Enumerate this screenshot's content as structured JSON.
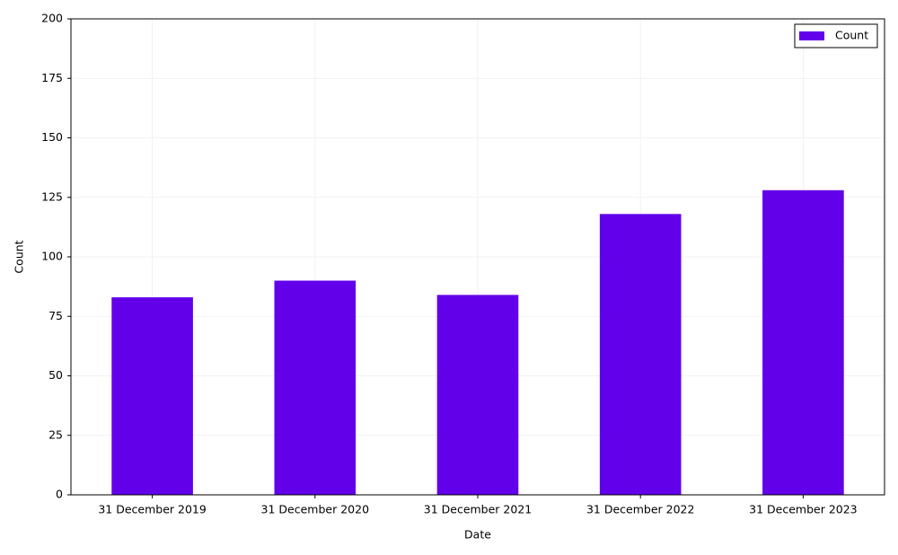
{
  "chart_data": {
    "type": "bar",
    "x_label": "Date",
    "y_label": "Count",
    "categories": [
      "31 December 2019",
      "31 December 2020",
      "31 December 2021",
      "31 December 2022",
      "31 December 2023"
    ],
    "series": [
      {
        "name": "Count",
        "color": "#6200ea",
        "values": [
          83,
          90,
          84,
          118,
          128
        ]
      }
    ],
    "ylim": [
      0,
      200
    ],
    "yticks": [
      0,
      25,
      50,
      75,
      100,
      125,
      150,
      175,
      200
    ],
    "grid": true,
    "legend": "upper right"
  }
}
